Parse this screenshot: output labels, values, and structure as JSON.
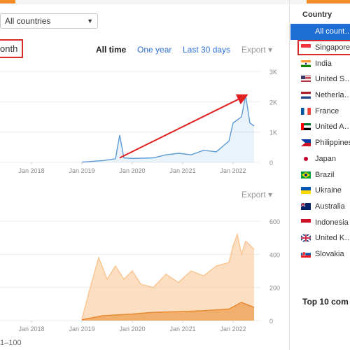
{
  "filters": {
    "country_select": "All countries",
    "period_label": "onth"
  },
  "range_buttons": {
    "all_time": "All time",
    "one_year": "One year",
    "last_30": "Last 30 days"
  },
  "export_label": "Export",
  "chart_data": [
    {
      "type": "line",
      "title": "",
      "x_ticks": [
        "Jan 2018",
        "Jan 2019",
        "Jan 2020",
        "Jan 2021",
        "Jan 2022"
      ],
      "y_ticks": [
        "3K",
        "2K",
        "1K",
        "0"
      ],
      "ylim": [
        0,
        3000
      ],
      "series": [
        {
          "color": "#5b9bd5",
          "points": [
            [
              "2019-01",
              10
            ],
            [
              "2019-06",
              60
            ],
            [
              "2019-09",
              120
            ],
            [
              "2019-10",
              900
            ],
            [
              "2019-11",
              150
            ],
            [
              "2020-01",
              130
            ],
            [
              "2020-06",
              150
            ],
            [
              "2020-09",
              250
            ],
            [
              "2020-12",
              300
            ],
            [
              "2021-03",
              250
            ],
            [
              "2021-06",
              400
            ],
            [
              "2021-09",
              350
            ],
            [
              "2021-12",
              700
            ],
            [
              "2022-01",
              1300
            ],
            [
              "2022-03",
              1500
            ],
            [
              "2022-04",
              2200
            ],
            [
              "2022-05",
              1300
            ],
            [
              "2022-06",
              1200
            ]
          ]
        }
      ],
      "annotation": {
        "type": "arrow",
        "color": "#e02020",
        "from": [
          "2019-10",
          150
        ],
        "to": [
          "2022-04",
          2200
        ]
      }
    },
    {
      "type": "area",
      "title": "",
      "x_ticks": [
        "Jan 2018",
        "Jan 2019",
        "Jan 2020",
        "Jan 2021",
        "Jan 2022"
      ],
      "y_ticks": [
        "600",
        "400",
        "200",
        "0"
      ],
      "ylim": [
        0,
        600
      ],
      "series": [
        {
          "color": "#f9c48f",
          "points": [
            [
              "2019-01",
              10
            ],
            [
              "2019-03",
              200
            ],
            [
              "2019-05",
              380
            ],
            [
              "2019-07",
              250
            ],
            [
              "2019-09",
              330
            ],
            [
              "2019-11",
              250
            ],
            [
              "2020-01",
              300
            ],
            [
              "2020-03",
              220
            ],
            [
              "2020-06",
              200
            ],
            [
              "2020-09",
              280
            ],
            [
              "2020-12",
              230
            ],
            [
              "2021-03",
              300
            ],
            [
              "2021-06",
              270
            ],
            [
              "2021-09",
              330
            ],
            [
              "2021-12",
              350
            ],
            [
              "2022-01",
              450
            ],
            [
              "2022-02",
              520
            ],
            [
              "2022-03",
              400
            ],
            [
              "2022-04",
              480
            ],
            [
              "2022-06",
              430
            ]
          ]
        },
        {
          "color": "#e8862a",
          "points": [
            [
              "2019-01",
              5
            ],
            [
              "2019-06",
              30
            ],
            [
              "2020-01",
              40
            ],
            [
              "2020-06",
              50
            ],
            [
              "2021-01",
              55
            ],
            [
              "2021-06",
              60
            ],
            [
              "2021-12",
              70
            ],
            [
              "2022-03",
              110
            ],
            [
              "2022-06",
              80
            ]
          ]
        }
      ]
    }
  ],
  "footer": "1–100",
  "country_panel": {
    "title": "Country",
    "items": [
      {
        "name": "All count…",
        "flag": "none"
      },
      {
        "name": "Singapore",
        "flag": "sg"
      },
      {
        "name": "India",
        "flag": "in"
      },
      {
        "name": "United S…",
        "flag": "us"
      },
      {
        "name": "Netherla…",
        "flag": "nl"
      },
      {
        "name": "France",
        "flag": "fr"
      },
      {
        "name": "United A…",
        "flag": "ae"
      },
      {
        "name": "Philippines",
        "flag": "ph"
      },
      {
        "name": "Japan",
        "flag": "jp"
      },
      {
        "name": "Brazil",
        "flag": "br"
      },
      {
        "name": "Ukraine",
        "flag": "ua"
      },
      {
        "name": "Australia",
        "flag": "au"
      },
      {
        "name": "Indonesia",
        "flag": "id"
      },
      {
        "name": "United K…",
        "flag": "gb"
      },
      {
        "name": "Slovakia",
        "flag": "sk"
      }
    ]
  },
  "top10_label": "Top 10 com"
}
